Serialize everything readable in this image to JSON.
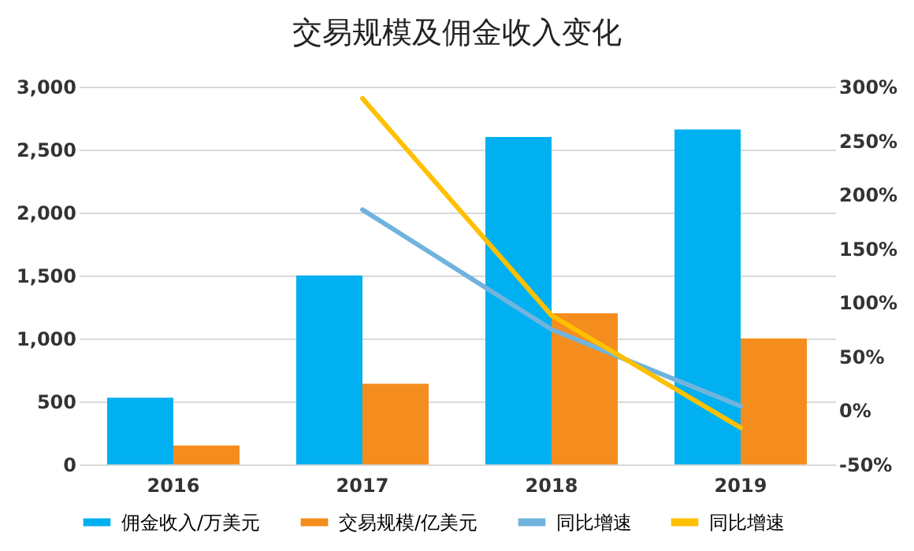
{
  "chart_data": {
    "type": "bar",
    "title": "交易规模及佣金收入变化",
    "categories": [
      "2016",
      "2017",
      "2018",
      "2019"
    ],
    "series": [
      {
        "name": "佣金收入/万美元",
        "color": "#00b0f0",
        "values": [
          530,
          1500,
          2600,
          2660
        ]
      },
      {
        "name": "交易规模/亿美元",
        "color": "#f58d1e",
        "values": [
          150,
          640,
          1200,
          1000
        ]
      },
      {
        "name": "同比增速",
        "type": "line",
        "axis": "y2",
        "color": "#70b4de",
        "values": [
          null,
          186,
          75,
          4
        ]
      },
      {
        "name": "同比增速",
        "type": "line",
        "axis": "y2",
        "color": "#ffc000",
        "values": [
          null,
          289,
          88,
          -16
        ]
      }
    ],
    "ylim": [
      0,
      3000
    ],
    "yticks": [
      {
        "value": 0,
        "label": "0"
      },
      {
        "value": 500,
        "label": "500"
      },
      {
        "value": 1000,
        "label": "1,000"
      },
      {
        "value": 1500,
        "label": "1,500"
      },
      {
        "value": 2000,
        "label": "2,000"
      },
      {
        "value": 2500,
        "label": "2,500"
      },
      {
        "value": 3000,
        "label": "3,000"
      }
    ],
    "y2lim": [
      -50,
      300
    ],
    "y2ticks": [
      {
        "value": -50,
        "label": "-50%"
      },
      {
        "value": 0,
        "label": "0%"
      },
      {
        "value": 50,
        "label": "50%"
      },
      {
        "value": 100,
        "label": "100%"
      },
      {
        "value": 150,
        "label": "150%"
      },
      {
        "value": 200,
        "label": "200%"
      },
      {
        "value": 250,
        "label": "250%"
      },
      {
        "value": 300,
        "label": "300%"
      }
    ],
    "grid": "y",
    "legend": "bottom"
  }
}
